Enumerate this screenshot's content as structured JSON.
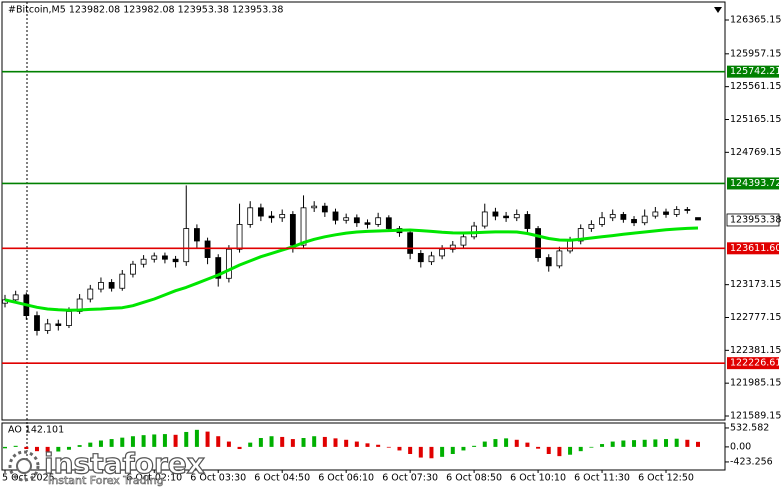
{
  "chart_data": {
    "type": "candlestick",
    "title": "#Bitcoin,M5  123982.08 123982.08 123953.38 123953.38",
    "categories": [
      "5 Oct 2025",
      null,
      null,
      null,
      null,
      null,
      null,
      null,
      null,
      null,
      null,
      null,
      null,
      null,
      "6 Oct 02:10",
      null,
      null,
      null,
      null,
      null,
      "6 Oct 03:30",
      null,
      null,
      null,
      null,
      null,
      "6 Oct 04:50",
      null,
      null,
      null,
      null,
      null,
      "6 Oct 06:10",
      null,
      null,
      null,
      null,
      null,
      "6 Oct 07:30",
      null,
      null,
      null,
      null,
      null,
      "6 Oct 08:50",
      null,
      null,
      null,
      null,
      null,
      "6 Oct 10:10",
      null,
      null,
      null,
      null,
      null,
      "6 Oct 11:30",
      null,
      null,
      null,
      null,
      null,
      "6 Oct 12:50",
      null,
      null,
      null
    ],
    "open": [
      122950,
      122990,
      123050,
      122800,
      122620,
      122700,
      122680,
      122850,
      123000,
      123120,
      123200,
      123130,
      123300,
      123420,
      123480,
      123520,
      123480,
      123450,
      123850,
      123700,
      123500,
      123250,
      123600,
      123900,
      124100,
      124000,
      123980,
      124020,
      123650,
      124100,
      124120,
      124050,
      123950,
      123980,
      123920,
      123900,
      123980,
      123850,
      123800,
      123550,
      123450,
      123520,
      123600,
      123650,
      123750,
      123880,
      124050,
      124000,
      123980,
      124020,
      123850,
      123500,
      123400,
      123580,
      123700,
      123850,
      123900,
      123980,
      124020,
      123960,
      123920,
      124000,
      124050,
      124020,
      124080,
      123982.08
    ],
    "high": [
      123050,
      123100,
      123080,
      122850,
      122760,
      122750,
      122900,
      123060,
      123170,
      123260,
      123240,
      123350,
      123460,
      123530,
      123560,
      123560,
      123520,
      124370,
      123900,
      123740,
      123540,
      123650,
      124150,
      124180,
      124150,
      124060,
      124080,
      124060,
      124250,
      124180,
      124160,
      124090,
      124030,
      124020,
      123960,
      124040,
      124010,
      123880,
      123830,
      123590,
      123570,
      123650,
      123700,
      123800,
      123930,
      124150,
      124100,
      124050,
      124080,
      124060,
      123880,
      123540,
      123630,
      123750,
      123900,
      123950,
      124050,
      124080,
      124050,
      124000,
      124080,
      124110,
      124090,
      124120,
      124110,
      123982.08
    ],
    "low": [
      122900,
      122950,
      122750,
      122560,
      122580,
      122620,
      122650,
      122820,
      122960,
      123080,
      123090,
      123100,
      123260,
      123380,
      123440,
      123430,
      123380,
      123400,
      123620,
      123420,
      123150,
      123200,
      123560,
      123860,
      123940,
      123920,
      123930,
      123560,
      123620,
      124050,
      123990,
      123900,
      123910,
      123870,
      123850,
      123870,
      123810,
      123750,
      123480,
      123380,
      123410,
      123480,
      123560,
      123620,
      123720,
      123850,
      123950,
      123930,
      123940,
      123800,
      123450,
      123330,
      123370,
      123550,
      123660,
      123810,
      123870,
      123940,
      123920,
      123880,
      123890,
      123970,
      123980,
      123990,
      124030,
      123953.38
    ],
    "close": [
      122990,
      123050,
      122800,
      122620,
      122700,
      122680,
      122850,
      123000,
      123120,
      123200,
      123130,
      123300,
      123420,
      123480,
      123520,
      123480,
      123450,
      123850,
      123700,
      123500,
      123250,
      123600,
      123900,
      124100,
      124000,
      123980,
      124020,
      123650,
      124100,
      124120,
      124050,
      123950,
      123980,
      123920,
      123900,
      123980,
      123850,
      123800,
      123550,
      123450,
      123520,
      123600,
      123650,
      123750,
      123880,
      124050,
      124000,
      123980,
      124020,
      123850,
      123500,
      123400,
      123580,
      123700,
      123850,
      123900,
      123980,
      124020,
      123960,
      123920,
      124000,
      124050,
      124020,
      124080,
      124070,
      123953.38
    ],
    "up_color": "#ffffff",
    "down_color": "#000000",
    "ma": {
      "color": "#00e600",
      "values": [
        122990,
        122960,
        122930,
        122900,
        122880,
        122870,
        122865,
        122868,
        122875,
        122880,
        122888,
        122895,
        122920,
        122960,
        123000,
        123050,
        123100,
        123140,
        123190,
        123240,
        123290,
        123350,
        123410,
        123460,
        123510,
        123550,
        123590,
        123630,
        123680,
        123720,
        123750,
        123775,
        123795,
        123808,
        123815,
        123820,
        123825,
        123830,
        123832,
        123825,
        123815,
        123805,
        123798,
        123796,
        123800,
        123806,
        123810,
        123810,
        123808,
        123790,
        123760,
        123730,
        123712,
        123710,
        123720,
        123736,
        123750,
        123765,
        123780,
        123795,
        123808,
        123822,
        123835,
        123845,
        123852,
        123857
      ]
    },
    "levels": [
      {
        "value": 125742.21,
        "color": "#008000"
      },
      {
        "value": 124393.72,
        "color": "#008000"
      },
      {
        "value": 123611.6,
        "label": "123611.60",
        "color": "#e00000"
      },
      {
        "value": 122226.61,
        "color": "#e00000"
      }
    ],
    "ylim": [
      121541,
      126558
    ],
    "yticks": [
      126365.15,
      125957.15,
      125561.15,
      125165.15,
      124769.15,
      123173.15,
      122777.15,
      122381.15,
      121985.15,
      121589.15
    ],
    "ao": {
      "type": "bar",
      "label": "AO 142.101",
      "values": [
        -40,
        30,
        -60,
        -120,
        -150,
        -130,
        -80,
        50,
        120,
        180,
        220,
        260,
        300,
        330,
        350,
        360,
        340,
        420,
        480,
        430,
        300,
        150,
        -60,
        120,
        250,
        300,
        280,
        220,
        250,
        300,
        280,
        240,
        200,
        150,
        100,
        60,
        -20,
        -100,
        -200,
        -300,
        -320,
        -280,
        -200,
        -100,
        30,
        150,
        220,
        240,
        200,
        120,
        -50,
        -200,
        -260,
        -220,
        -120,
        -20,
        80,
        150,
        180,
        190,
        200,
        210,
        220,
        230,
        200,
        142.101
      ],
      "up_color": "#00b000",
      "down_color": "#e00000",
      "ylim": [
        -650,
        672
      ],
      "yticks": [
        532.582,
        {
          "value": 0,
          "label": "0.00"
        },
        -423.256
      ]
    },
    "watermark": {
      "brand": "instaforex",
      "tagline": "Instant Forex Trading"
    }
  }
}
